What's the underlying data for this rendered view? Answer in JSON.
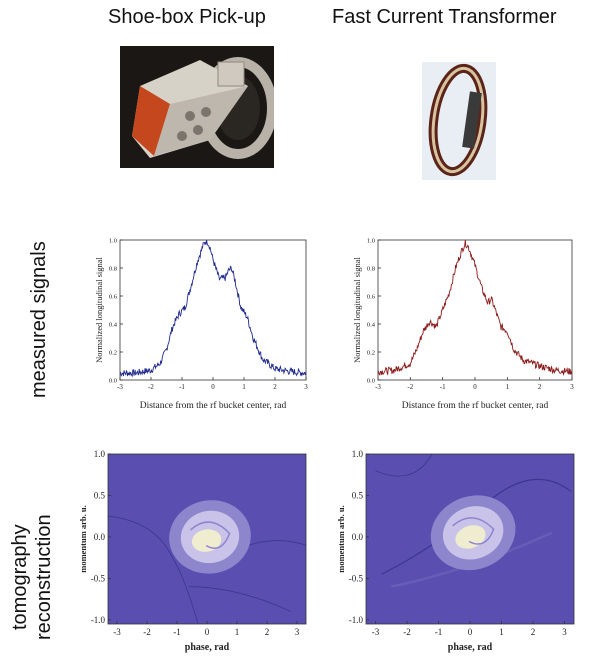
{
  "columns": [
    {
      "title": "Shoe-box Pick-up"
    },
    {
      "title": "Fast Current Transformer"
    }
  ],
  "rows": [
    {
      "label": "measured signals"
    },
    {
      "label_line1": "tomography",
      "label_line2": "reconstruction"
    }
  ],
  "colors": {
    "trace_left": "#1f2a8c",
    "trace_right": "#8b1a1a",
    "contour_outer": "#5a4fb0",
    "contour_mid": "#8e86cc",
    "contour_inner": "#c9c3ea",
    "contour_core": "#f0ecd0"
  },
  "chart_data": [
    {
      "type": "line",
      "panel": "shoebox-signal",
      "xlabel": "Distance from the rf bucket center, rad",
      "ylabel": "Normalized longitudinal signal",
      "xlim": [
        -3,
        3
      ],
      "ylim": [
        0.0,
        1.0
      ],
      "xticks": [
        "-3",
        "-2",
        "-1",
        "0",
        "1",
        "2",
        "3"
      ],
      "yticks": [
        "0.0",
        "0.2",
        "0.4",
        "0.6",
        "0.8",
        "1.0"
      ],
      "series": [
        {
          "x": [
            -3.0,
            -2.5,
            -2.0,
            -1.7,
            -1.5,
            -1.3,
            -1.1,
            -0.9,
            -0.7,
            -0.5,
            -0.3,
            -0.2,
            -0.1,
            0.0,
            0.2,
            0.4,
            0.5,
            0.6,
            0.7,
            0.9,
            1.1,
            1.3,
            1.6,
            2.0,
            2.5,
            3.0
          ],
          "y": [
            0.05,
            0.05,
            0.07,
            0.12,
            0.22,
            0.38,
            0.47,
            0.52,
            0.68,
            0.85,
            0.97,
            1.0,
            0.95,
            0.86,
            0.72,
            0.73,
            0.78,
            0.8,
            0.72,
            0.52,
            0.45,
            0.3,
            0.15,
            0.08,
            0.06,
            0.05
          ]
        }
      ]
    },
    {
      "type": "line",
      "panel": "fct-signal",
      "xlabel": "Distance from the rf bucket center, rad",
      "ylabel": "Normalized longitudinal signal",
      "xlim": [
        -3,
        3
      ],
      "ylim": [
        0.0,
        1.0
      ],
      "xticks": [
        "-3",
        "-2",
        "-1",
        "0",
        "1",
        "2",
        "3"
      ],
      "yticks": [
        "0.0",
        "0.2",
        "0.4",
        "0.6",
        "0.8",
        "1.0"
      ],
      "series": [
        {
          "x": [
            -3.0,
            -2.5,
            -2.0,
            -1.8,
            -1.6,
            -1.4,
            -1.2,
            -1.0,
            -0.8,
            -0.6,
            -0.4,
            -0.3,
            -0.2,
            0.0,
            0.2,
            0.4,
            0.5,
            0.6,
            0.8,
            1.0,
            1.2,
            1.5,
            2.0,
            2.5,
            3.0
          ],
          "y": [
            0.06,
            0.07,
            0.12,
            0.22,
            0.35,
            0.42,
            0.38,
            0.5,
            0.62,
            0.8,
            0.93,
            0.98,
            0.95,
            0.82,
            0.66,
            0.55,
            0.58,
            0.52,
            0.38,
            0.35,
            0.22,
            0.14,
            0.1,
            0.07,
            0.06
          ]
        }
      ]
    },
    {
      "type": "heatmap",
      "panel": "shoebox-tomography",
      "xlabel": "phase, rad",
      "ylabel": "momentum arb. u.",
      "xlim": [
        -3.3,
        3.3
      ],
      "ylim": [
        -1.05,
        1.0
      ],
      "xticks": [
        "-3",
        "-2",
        "-1",
        "0",
        "1",
        "2",
        "3"
      ],
      "yticks": [
        "-1.0",
        "-0.5",
        "0.0",
        "0.5",
        "1.0"
      ]
    },
    {
      "type": "heatmap",
      "panel": "fct-tomography",
      "xlabel": "phase, rad",
      "ylabel": "momentum arb. u.",
      "xlim": [
        -3.3,
        3.3
      ],
      "ylim": [
        -1.05,
        1.0
      ],
      "xticks": [
        "-3",
        "-2",
        "-1",
        "0",
        "1",
        "2",
        "3"
      ],
      "yticks": [
        "-1.0",
        "-0.5",
        "0.0",
        "0.5",
        "1.0"
      ]
    }
  ]
}
